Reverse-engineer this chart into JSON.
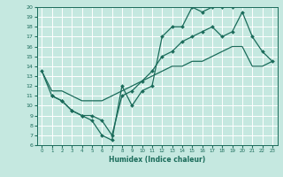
{
  "title": "",
  "xlabel": "Humidex (Indice chaleur)",
  "bg_color": "#c5e8e0",
  "grid_color": "#ffffff",
  "line_color": "#1a6b5a",
  "xlim": [
    -0.5,
    23.5
  ],
  "ylim": [
    6,
    20
  ],
  "xticks": [
    0,
    1,
    2,
    3,
    4,
    5,
    6,
    7,
    8,
    9,
    10,
    11,
    12,
    13,
    14,
    15,
    16,
    17,
    18,
    19,
    20,
    21,
    22,
    23
  ],
  "yticks": [
    6,
    7,
    8,
    9,
    10,
    11,
    12,
    13,
    14,
    15,
    16,
    17,
    18,
    19,
    20
  ],
  "line1_x": [
    0,
    1,
    2,
    3,
    4,
    5,
    6,
    7,
    8,
    9,
    10,
    11,
    12,
    13,
    14,
    15,
    16,
    17,
    18,
    19
  ],
  "line1_y": [
    13.5,
    11.0,
    10.5,
    9.5,
    9.0,
    8.5,
    7.0,
    6.5,
    12.0,
    10.0,
    11.5,
    12.0,
    17.0,
    18.0,
    18.0,
    20.0,
    19.5,
    20.0,
    20.0,
    20.0
  ],
  "line2_x": [
    1,
    2,
    3,
    4,
    5,
    6,
    7,
    8,
    9,
    10,
    11,
    12,
    13,
    14,
    15,
    16,
    17,
    18,
    19,
    20,
    21,
    22,
    23
  ],
  "line2_y": [
    11.0,
    10.5,
    9.5,
    9.0,
    9.0,
    8.5,
    7.0,
    11.0,
    11.5,
    12.5,
    13.5,
    15.0,
    15.5,
    16.5,
    17.0,
    17.5,
    18.0,
    17.0,
    17.5,
    19.5,
    17.0,
    15.5,
    14.5
  ],
  "line3_x": [
    0,
    1,
    2,
    3,
    4,
    5,
    6,
    7,
    8,
    9,
    10,
    11,
    12,
    13,
    14,
    15,
    16,
    17,
    18,
    19,
    20,
    21,
    22,
    23
  ],
  "line3_y": [
    13.5,
    11.5,
    11.5,
    11.0,
    10.5,
    10.5,
    10.5,
    11.0,
    11.5,
    12.0,
    12.5,
    13.0,
    13.5,
    14.0,
    14.0,
    14.5,
    14.5,
    15.0,
    15.5,
    16.0,
    16.0,
    14.0,
    14.0,
    14.5
  ]
}
